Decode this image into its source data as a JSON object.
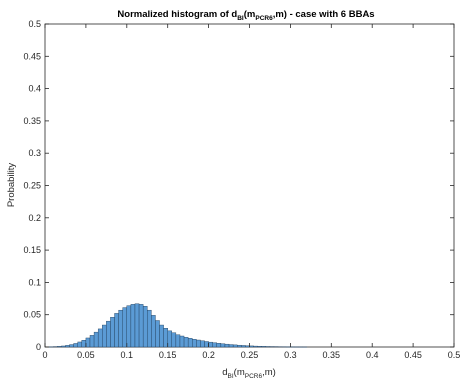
{
  "chart_data": {
    "type": "bar",
    "title": {
      "prefix": "Normalized histogram of d",
      "sub1": "BI",
      "mid": "(m",
      "sub2": "PCR6",
      "suffix": ",m) - case with 6 BBAs"
    },
    "xlabel": {
      "main": "d",
      "sub1": "BI",
      "mid": "(m",
      "sub2": "PCR6",
      "suffix": ",m)"
    },
    "ylabel": "Probability",
    "xlim": [
      0,
      0.5
    ],
    "ylim": [
      0,
      0.5
    ],
    "xticks": [
      "0",
      "0.05",
      "0.1",
      "0.15",
      "0.2",
      "0.25",
      "0.3",
      "0.35",
      "0.4",
      "0.45",
      "0.5"
    ],
    "yticks": [
      "0",
      "0.05",
      "0.1",
      "0.15",
      "0.2",
      "0.25",
      "0.3",
      "0.35",
      "0.4",
      "0.45",
      "0.5"
    ],
    "grid": false,
    "bar_color": "#5b9bd5",
    "edge_color": "#1f3b57",
    "bin_width": 0.005,
    "bin_start": 0.005,
    "values": [
      0.0003,
      0.0006,
      0.001,
      0.0016,
      0.0025,
      0.0038,
      0.0055,
      0.0078,
      0.0105,
      0.014,
      0.018,
      0.023,
      0.028,
      0.034,
      0.04,
      0.046,
      0.052,
      0.057,
      0.061,
      0.064,
      0.066,
      0.067,
      0.066,
      0.063,
      0.057,
      0.049,
      0.041,
      0.034,
      0.029,
      0.025,
      0.022,
      0.019,
      0.017,
      0.015,
      0.0135,
      0.012,
      0.0108,
      0.0096,
      0.0085,
      0.0075,
      0.0066,
      0.0058,
      0.0051,
      0.0044,
      0.0038,
      0.0033,
      0.0028,
      0.0024,
      0.002,
      0.0017,
      0.0014,
      0.0012,
      0.001,
      0.0008,
      0.0007,
      0.0006,
      0.0005,
      0.0004,
      0.0003,
      0.0003,
      0.0002,
      0.0002,
      0.0001
    ]
  }
}
